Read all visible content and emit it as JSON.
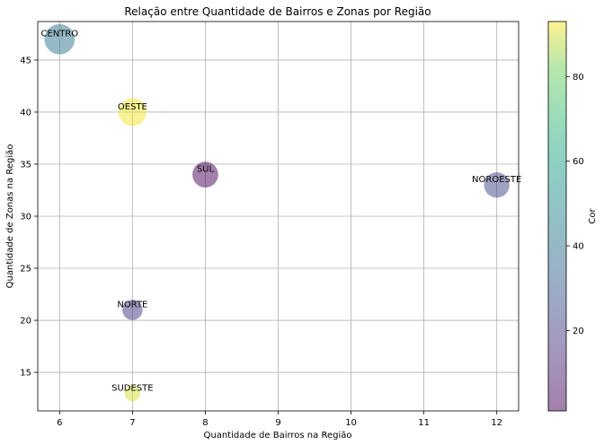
{
  "chart_data": {
    "type": "scatter",
    "title": "Relação entre Quantidade de Bairros e Zonas por Região",
    "xlabel": "Quantidade de Bairros na Região",
    "ylabel": "Quantidade de Zonas na Região",
    "xlim": [
      5.7,
      12.3
    ],
    "ylim": [
      11.3,
      48.7
    ],
    "xticks": [
      6,
      7,
      8,
      9,
      10,
      11,
      12
    ],
    "yticks": [
      15,
      20,
      25,
      30,
      35,
      40,
      45
    ],
    "grid": true,
    "colormap": "viridis",
    "alpha": 0.5,
    "points": [
      {
        "label": "CENTRO",
        "x": 6,
        "y": 47,
        "color_value": 42,
        "size": 47
      },
      {
        "label": "OESTE",
        "x": 7,
        "y": 40,
        "color_value": 92,
        "size": 40
      },
      {
        "label": "SUL",
        "x": 8,
        "y": 34,
        "color_value": 2,
        "size": 34
      },
      {
        "label": "NOROESTE",
        "x": 12,
        "y": 33,
        "color_value": 22,
        "size": 33
      },
      {
        "label": "NORTE",
        "x": 7,
        "y": 21,
        "color_value": 17,
        "size": 21
      },
      {
        "label": "SUDESTE",
        "x": 7,
        "y": 13,
        "color_value": 90,
        "size": 13
      }
    ],
    "colorbar": {
      "label": "Cor",
      "range": [
        1,
        93
      ],
      "ticks": [
        20,
        40,
        60,
        80
      ]
    }
  }
}
